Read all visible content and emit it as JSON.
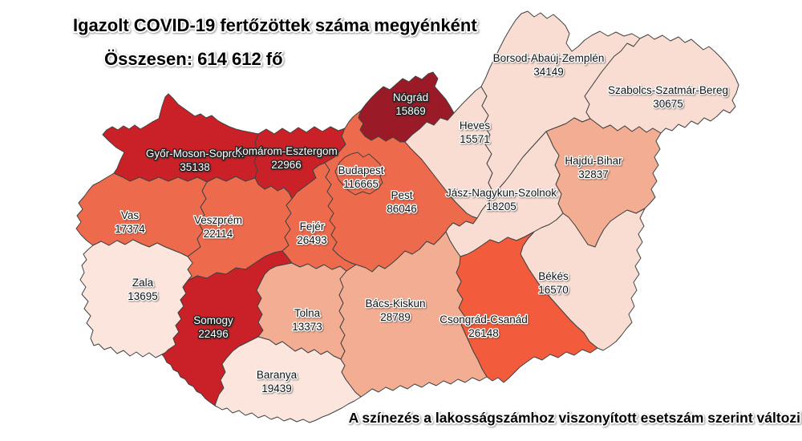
{
  "header": {
    "title": "Igazolt COVID-19 fertőzöttek száma megyénként",
    "subtitle": "Összesen: 614 612 fő"
  },
  "footnote": "A színezés a lakosságszámhoz viszonyított esetszám szerint változi",
  "palette": {
    "background": "#ffffff",
    "border": "#424242",
    "scale_darkest": "#9a1b27",
    "scale_red": "#ca2027",
    "scale_orange": "#ed6a4c",
    "scale_bright_orange": "#f25b3b",
    "scale_peach": "#f2ad92",
    "scale_light": "#f9ddd3",
    "scale_lightest": "#fbe5dd"
  },
  "chart_data": {
    "type": "heatmap",
    "subtype": "choropleth-map",
    "geography": "Hungary counties",
    "title": "Igazolt COVID-19 fertőzöttek száma megyénként",
    "total": {
      "label": "Összesen",
      "value": 614612,
      "display": "614 612",
      "unit": "fő"
    },
    "note": "A színezés a lakosságszámhoz viszonyított esetszám szerint változi",
    "legend": "none",
    "regions": [
      {
        "id": "gyor-moson-sopron",
        "name": "Győr-Moson-Sopron",
        "value": 35138,
        "fill": "#ca2027",
        "label_color": "#ffffff"
      },
      {
        "id": "komarom-esztergom",
        "name": "Komárom-Esztergom",
        "value": 22966,
        "fill": "#ca2027",
        "label_color": "#ffffff"
      },
      {
        "id": "vas",
        "name": "Vas",
        "value": 17374,
        "fill": "#ed6a4c",
        "label_color": "#111111"
      },
      {
        "id": "veszprem",
        "name": "Veszprém",
        "value": 22114,
        "fill": "#ed6a4c",
        "label_color": "#111111"
      },
      {
        "id": "zala",
        "name": "Zala",
        "value": 13695,
        "fill": "#fbe5dd",
        "label_color": "#111111"
      },
      {
        "id": "somogy",
        "name": "Somogy",
        "value": 22496,
        "fill": "#ca2027",
        "label_color": "#ffffff"
      },
      {
        "id": "tolna",
        "name": "Tolna",
        "value": 13373,
        "fill": "#f2ad92",
        "label_color": "#111111"
      },
      {
        "id": "baranya",
        "name": "Baranya",
        "value": 19439,
        "fill": "#fbe5dd",
        "label_color": "#111111"
      },
      {
        "id": "fejer",
        "name": "Fejér",
        "value": 26493,
        "fill": "#ed6a4c",
        "label_color": "#111111"
      },
      {
        "id": "pest",
        "name": "Pest",
        "value": 86046,
        "fill": "#ed6a4c",
        "label_color": "#111111"
      },
      {
        "id": "budapest",
        "name": "Budapest",
        "value": 116665,
        "fill": "#ed6a4c",
        "label_color": "#111111"
      },
      {
        "id": "nograd",
        "name": "Nógrád",
        "value": 15869,
        "fill": "#9a1b27",
        "label_color": "#ffffff"
      },
      {
        "id": "heves",
        "name": "Heves",
        "value": 15571,
        "fill": "#f9ddd3",
        "label_color": "#111111"
      },
      {
        "id": "borsod-abauj-zemplen",
        "name": "Borsod-Abaúj-Zemplén",
        "value": 34149,
        "fill": "#f9ddd3",
        "label_color": "#111111"
      },
      {
        "id": "szabolcs-szatmar-bereg",
        "name": "Szabolcs-Szatmár-Bereg",
        "value": 30675,
        "fill": "#f9ddd3",
        "label_color": "#111111"
      },
      {
        "id": "hajdu-bihar",
        "name": "Hajdú-Bihar",
        "value": 32837,
        "fill": "#f2ad92",
        "label_color": "#111111"
      },
      {
        "id": "jasz-nagykun-szolnok",
        "name": "Jász-Nagykun-Szolnok",
        "value": 18205,
        "fill": "#f9ddd3",
        "label_color": "#111111"
      },
      {
        "id": "bekes",
        "name": "Békés",
        "value": 16570,
        "fill": "#f9ddd3",
        "label_color": "#111111"
      },
      {
        "id": "csongrad-csanad",
        "name": "Csongrád-Csanád",
        "value": 26148,
        "fill": "#f25b3b",
        "label_color": "#111111"
      },
      {
        "id": "bacs-kiskun",
        "name": "Bács-Kiskun",
        "value": 28789,
        "fill": "#f2ad92",
        "label_color": "#111111"
      }
    ]
  }
}
